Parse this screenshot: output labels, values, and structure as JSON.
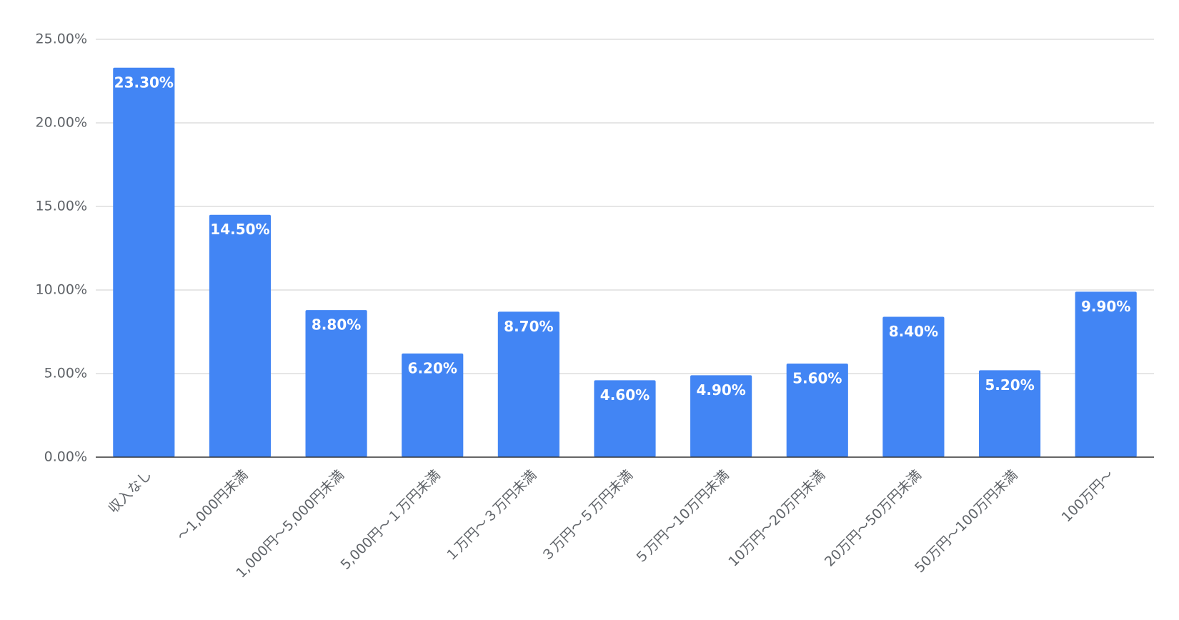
{
  "chart_data": {
    "type": "bar",
    "categories": [
      "収入なし",
      "〜1,000円未満",
      "1,000円〜5,000円未満",
      "5,000円〜１万円未満",
      "１万円〜３万円未満",
      "３万円〜５万円未満",
      "５万円〜10万円未満",
      "10万円〜20万円未満",
      "20万円〜50万円未満",
      "50万円〜100万円未満",
      "100万円〜"
    ],
    "values": [
      23.3,
      14.5,
      8.8,
      6.2,
      8.7,
      4.6,
      4.9,
      5.6,
      8.4,
      5.2,
      9.9
    ],
    "value_labels": [
      "23.30%",
      "14.50%",
      "8.80%",
      "6.20%",
      "8.70%",
      "4.60%",
      "4.90%",
      "5.60%",
      "8.40%",
      "5.20%",
      "9.90%"
    ],
    "color": "#4285f4",
    "ylim": [
      0,
      25
    ],
    "yticks": [
      {
        "value": 0,
        "label": "0.00%"
      },
      {
        "value": 5,
        "label": "5.00%"
      },
      {
        "value": 10,
        "label": "10.00%"
      },
      {
        "value": 15,
        "label": "15.00%"
      },
      {
        "value": 20,
        "label": "20.00%"
      },
      {
        "value": 25,
        "label": "25.00%"
      }
    ],
    "grid": true
  }
}
